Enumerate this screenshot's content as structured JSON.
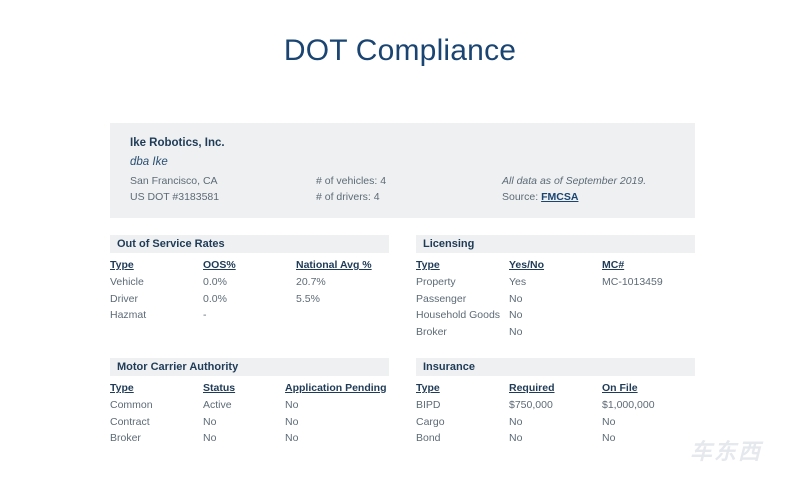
{
  "page": {
    "title": "DOT Compliance"
  },
  "company": {
    "name": "Ike Robotics, Inc.",
    "dba": "dba Ike",
    "location": "San Francisco, CA",
    "usdot": "US DOT #3183581",
    "vehicles": "# of vehicles: 4",
    "drivers": "# of drivers: 4",
    "asof": "All data as of September 2019.",
    "source_label": "Source:",
    "source_link": "FMCSA"
  },
  "oos": {
    "title": "Out of Service Rates",
    "headers": [
      "Type",
      "OOS%",
      "National Avg %"
    ],
    "rows": [
      [
        "Vehicle",
        "0.0%",
        "20.7%"
      ],
      [
        "Driver",
        "0.0%",
        "5.5%"
      ],
      [
        "Hazmat",
        "-",
        ""
      ]
    ]
  },
  "licensing": {
    "title": "Licensing",
    "headers": [
      "Type",
      "Yes/No",
      "MC#"
    ],
    "rows": [
      [
        "Property",
        "Yes",
        "MC-1013459"
      ],
      [
        "Passenger",
        "No",
        ""
      ],
      [
        "Household Goods",
        "No",
        ""
      ],
      [
        "Broker",
        "No",
        ""
      ]
    ]
  },
  "authority": {
    "title": "Motor Carrier Authority",
    "headers": [
      "Type",
      "Status",
      "Application Pending"
    ],
    "rows": [
      [
        "Common",
        "Active",
        "No"
      ],
      [
        "Contract",
        "No",
        "No"
      ],
      [
        "Broker",
        "No",
        "No"
      ]
    ]
  },
  "insurance": {
    "title": "Insurance",
    "headers": [
      "Type",
      "Required",
      "On File"
    ],
    "rows": [
      [
        "BIPD",
        "$750,000",
        "$1,000,000"
      ],
      [
        "Cargo",
        "No",
        "No"
      ],
      [
        "Bond",
        "No",
        "No"
      ]
    ]
  },
  "watermark": {
    "text": "车东西"
  }
}
